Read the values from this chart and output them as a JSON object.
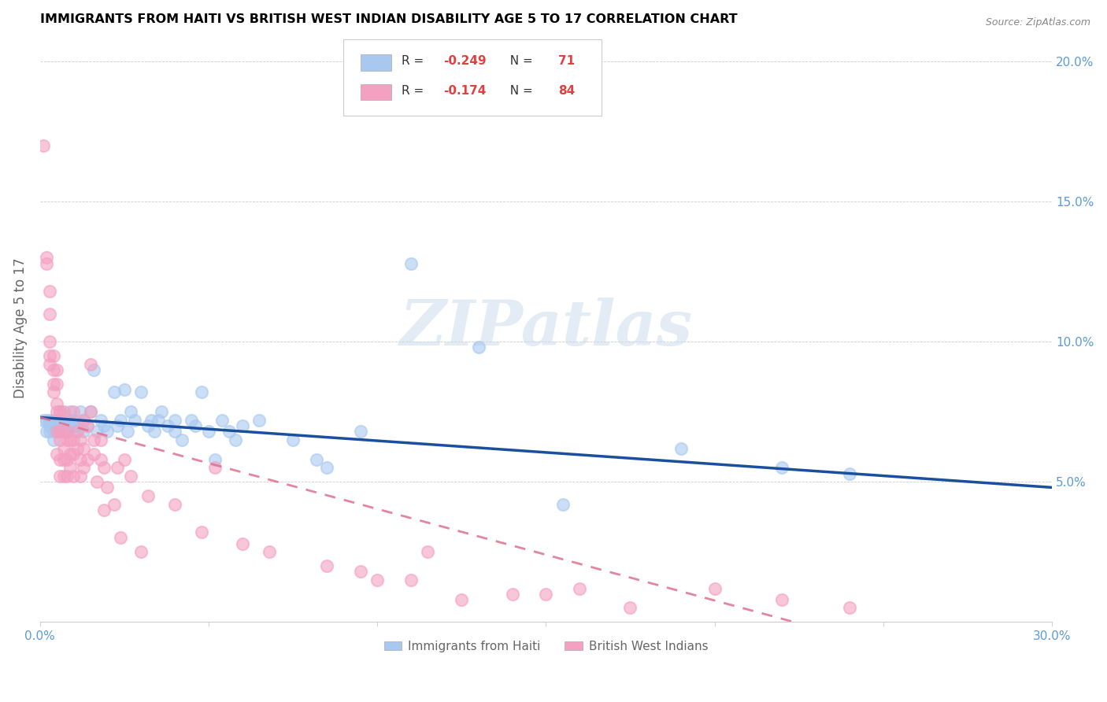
{
  "title": "IMMIGRANTS FROM HAITI VS BRITISH WEST INDIAN DISABILITY AGE 5 TO 17 CORRELATION CHART",
  "source": "Source: ZipAtlas.com",
  "ylabel": "Disability Age 5 to 17",
  "xlim": [
    0.0,
    0.3
  ],
  "ylim": [
    0.0,
    0.21
  ],
  "xticks": [
    0.0,
    0.05,
    0.1,
    0.15,
    0.2,
    0.25,
    0.3
  ],
  "xticklabels": [
    "0.0%",
    "",
    "",
    "",
    "",
    "",
    "30.0%"
  ],
  "yticks": [
    0.05,
    0.1,
    0.15,
    0.2
  ],
  "yticklabels": [
    "5.0%",
    "10.0%",
    "15.0%",
    "20.0%"
  ],
  "haiti_color": "#a8c8f0",
  "bwi_color": "#f4a0c0",
  "haiti_line_color": "#1a4fa0",
  "bwi_line_color": "#e07090",
  "watermark": "ZIPatlas",
  "haiti_R": "-0.249",
  "haiti_N": "71",
  "bwi_R": "-0.174",
  "bwi_N": "84",
  "haiti_points": [
    [
      0.001,
      0.072
    ],
    [
      0.002,
      0.068
    ],
    [
      0.002,
      0.072
    ],
    [
      0.003,
      0.07
    ],
    [
      0.003,
      0.072
    ],
    [
      0.003,
      0.068
    ],
    [
      0.004,
      0.065
    ],
    [
      0.004,
      0.072
    ],
    [
      0.004,
      0.068
    ],
    [
      0.005,
      0.072
    ],
    [
      0.005,
      0.07
    ],
    [
      0.005,
      0.068
    ],
    [
      0.006,
      0.075
    ],
    [
      0.006,
      0.07
    ],
    [
      0.007,
      0.068
    ],
    [
      0.007,
      0.072
    ],
    [
      0.008,
      0.07
    ],
    [
      0.008,
      0.068
    ],
    [
      0.009,
      0.075
    ],
    [
      0.009,
      0.072
    ],
    [
      0.01,
      0.07
    ],
    [
      0.01,
      0.072
    ],
    [
      0.011,
      0.068
    ],
    [
      0.011,
      0.07
    ],
    [
      0.012,
      0.075
    ],
    [
      0.013,
      0.068
    ],
    [
      0.013,
      0.072
    ],
    [
      0.014,
      0.07
    ],
    [
      0.015,
      0.075
    ],
    [
      0.016,
      0.09
    ],
    [
      0.017,
      0.068
    ],
    [
      0.018,
      0.072
    ],
    [
      0.019,
      0.07
    ],
    [
      0.02,
      0.068
    ],
    [
      0.022,
      0.082
    ],
    [
      0.023,
      0.07
    ],
    [
      0.024,
      0.072
    ],
    [
      0.025,
      0.083
    ],
    [
      0.026,
      0.068
    ],
    [
      0.027,
      0.075
    ],
    [
      0.028,
      0.072
    ],
    [
      0.03,
      0.082
    ],
    [
      0.032,
      0.07
    ],
    [
      0.033,
      0.072
    ],
    [
      0.034,
      0.068
    ],
    [
      0.035,
      0.072
    ],
    [
      0.036,
      0.075
    ],
    [
      0.038,
      0.07
    ],
    [
      0.04,
      0.068
    ],
    [
      0.04,
      0.072
    ],
    [
      0.042,
      0.065
    ],
    [
      0.045,
      0.072
    ],
    [
      0.046,
      0.07
    ],
    [
      0.048,
      0.082
    ],
    [
      0.05,
      0.068
    ],
    [
      0.052,
      0.058
    ],
    [
      0.054,
      0.072
    ],
    [
      0.056,
      0.068
    ],
    [
      0.058,
      0.065
    ],
    [
      0.06,
      0.07
    ],
    [
      0.065,
      0.072
    ],
    [
      0.075,
      0.065
    ],
    [
      0.082,
      0.058
    ],
    [
      0.085,
      0.055
    ],
    [
      0.095,
      0.068
    ],
    [
      0.11,
      0.128
    ],
    [
      0.13,
      0.098
    ],
    [
      0.155,
      0.042
    ],
    [
      0.19,
      0.062
    ],
    [
      0.22,
      0.055
    ],
    [
      0.24,
      0.053
    ]
  ],
  "bwi_points": [
    [
      0.001,
      0.17
    ],
    [
      0.002,
      0.13
    ],
    [
      0.002,
      0.128
    ],
    [
      0.003,
      0.118
    ],
    [
      0.003,
      0.11
    ],
    [
      0.003,
      0.1
    ],
    [
      0.003,
      0.095
    ],
    [
      0.003,
      0.092
    ],
    [
      0.004,
      0.095
    ],
    [
      0.004,
      0.09
    ],
    [
      0.004,
      0.085
    ],
    [
      0.004,
      0.082
    ],
    [
      0.005,
      0.09
    ],
    [
      0.005,
      0.085
    ],
    [
      0.005,
      0.078
    ],
    [
      0.005,
      0.075
    ],
    [
      0.005,
      0.068
    ],
    [
      0.005,
      0.06
    ],
    [
      0.006,
      0.075
    ],
    [
      0.006,
      0.068
    ],
    [
      0.006,
      0.065
    ],
    [
      0.006,
      0.058
    ],
    [
      0.006,
      0.052
    ],
    [
      0.007,
      0.075
    ],
    [
      0.007,
      0.068
    ],
    [
      0.007,
      0.062
    ],
    [
      0.007,
      0.058
    ],
    [
      0.007,
      0.052
    ],
    [
      0.008,
      0.068
    ],
    [
      0.008,
      0.065
    ],
    [
      0.008,
      0.058
    ],
    [
      0.008,
      0.052
    ],
    [
      0.009,
      0.065
    ],
    [
      0.009,
      0.06
    ],
    [
      0.009,
      0.055
    ],
    [
      0.01,
      0.075
    ],
    [
      0.01,
      0.065
    ],
    [
      0.01,
      0.06
    ],
    [
      0.01,
      0.052
    ],
    [
      0.011,
      0.068
    ],
    [
      0.011,
      0.062
    ],
    [
      0.012,
      0.065
    ],
    [
      0.012,
      0.058
    ],
    [
      0.012,
      0.052
    ],
    [
      0.013,
      0.072
    ],
    [
      0.013,
      0.062
    ],
    [
      0.013,
      0.055
    ],
    [
      0.014,
      0.07
    ],
    [
      0.014,
      0.058
    ],
    [
      0.015,
      0.075
    ],
    [
      0.015,
      0.092
    ],
    [
      0.016,
      0.065
    ],
    [
      0.016,
      0.06
    ],
    [
      0.017,
      0.05
    ],
    [
      0.018,
      0.065
    ],
    [
      0.018,
      0.058
    ],
    [
      0.019,
      0.055
    ],
    [
      0.019,
      0.04
    ],
    [
      0.02,
      0.048
    ],
    [
      0.022,
      0.042
    ],
    [
      0.023,
      0.055
    ],
    [
      0.024,
      0.03
    ],
    [
      0.025,
      0.058
    ],
    [
      0.027,
      0.052
    ],
    [
      0.03,
      0.025
    ],
    [
      0.032,
      0.045
    ],
    [
      0.04,
      0.042
    ],
    [
      0.048,
      0.032
    ],
    [
      0.052,
      0.055
    ],
    [
      0.06,
      0.028
    ],
    [
      0.068,
      0.025
    ],
    [
      0.085,
      0.02
    ],
    [
      0.095,
      0.018
    ],
    [
      0.1,
      0.015
    ],
    [
      0.11,
      0.015
    ],
    [
      0.115,
      0.025
    ],
    [
      0.125,
      0.008
    ],
    [
      0.14,
      0.01
    ],
    [
      0.15,
      0.01
    ],
    [
      0.16,
      0.012
    ],
    [
      0.175,
      0.005
    ],
    [
      0.2,
      0.012
    ],
    [
      0.22,
      0.008
    ],
    [
      0.24,
      0.005
    ]
  ]
}
